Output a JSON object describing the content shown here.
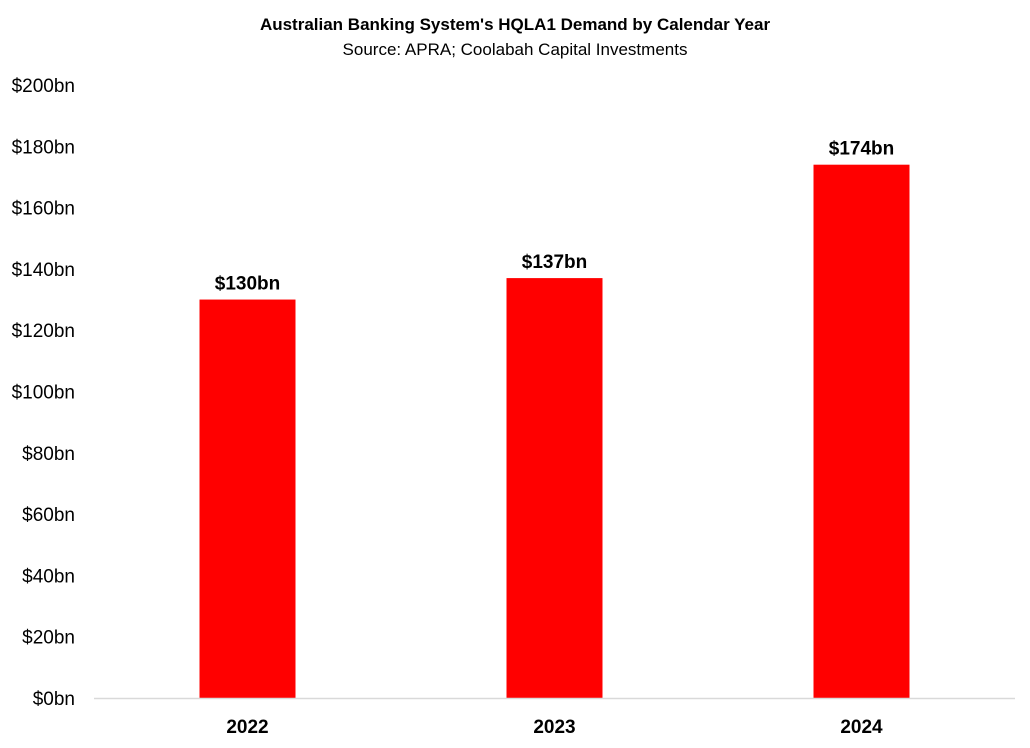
{
  "chart_data": {
    "type": "bar",
    "title": "Australian Banking System's HQLA1 Demand by Calendar Year",
    "subtitle": "Source: APRA; Coolabah Capital Investments",
    "categories": [
      "2022",
      "2023",
      "2024"
    ],
    "values": [
      130,
      137,
      174
    ],
    "data_labels": [
      "$130bn",
      "$137bn",
      "$174bn"
    ],
    "xlabel": "",
    "ylabel": "",
    "ylim": [
      0,
      200
    ],
    "yticks": [
      0,
      20,
      40,
      60,
      80,
      100,
      120,
      140,
      160,
      180,
      200
    ],
    "ytick_labels": [
      "$0bn",
      "$20bn",
      "$40bn",
      "$60bn",
      "$80bn",
      "$100bn",
      "$120bn",
      "$140bn",
      "$160bn",
      "$180bn",
      "$200bn"
    ],
    "grid": false,
    "legend": "none",
    "colors": {
      "bar": "#ff0000",
      "axis": "#d9d9d9"
    }
  }
}
